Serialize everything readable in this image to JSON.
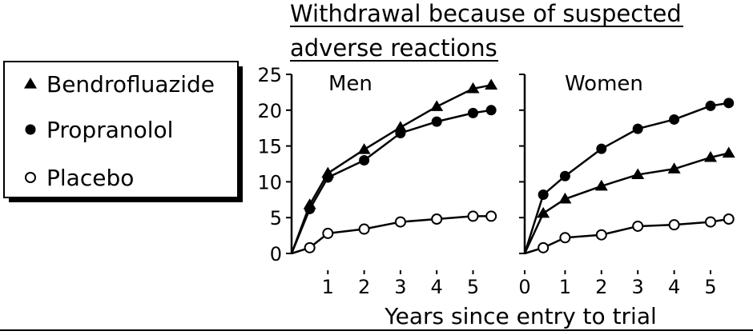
{
  "chart_data": {
    "type": "line",
    "title": [
      "Withdrawal because of suspected",
      "adverse reactions"
    ],
    "xlabel": "Years since entry to trial",
    "ylabel": "",
    "ylim": [
      0,
      25
    ],
    "yticks": [
      0,
      5,
      10,
      15,
      20,
      25
    ],
    "legend": {
      "placement": "left",
      "entries": [
        {
          "marker": "triangle-filled",
          "label": "Bendrofluazide"
        },
        {
          "marker": "circle-filled",
          "label": "Propranolol"
        },
        {
          "marker": "circle-open",
          "label": "Placebo"
        }
      ]
    },
    "panels": [
      {
        "name": "Men",
        "xticks": [
          "1",
          "2",
          "3",
          "4",
          "5"
        ],
        "series": [
          {
            "name": "Bendrofluazide",
            "marker": "triangle-filled",
            "x": [
              0,
              0.5,
              1,
              2,
              3,
              4,
              5,
              5.5
            ],
            "y": [
              0,
              6.8,
              11.2,
              14.5,
              17.6,
              20.5,
              23.0,
              23.5
            ]
          },
          {
            "name": "Propranolol",
            "marker": "circle-filled",
            "x": [
              0,
              0.5,
              1,
              2,
              3,
              4,
              5,
              5.5
            ],
            "y": [
              0,
              6.2,
              10.6,
              13.0,
              16.8,
              18.4,
              19.6,
              20.0
            ]
          },
          {
            "name": "Placebo",
            "marker": "circle-open",
            "x": [
              0,
              0.5,
              1,
              2,
              3,
              4,
              5,
              5.5
            ],
            "y": [
              0,
              0.8,
              2.8,
              3.4,
              4.4,
              4.8,
              5.2,
              5.2
            ]
          }
        ]
      },
      {
        "name": "Women",
        "xticks": [
          "0",
          "1",
          "2",
          "3",
          "4",
          "5"
        ],
        "series": [
          {
            "name": "Bendrofluazide",
            "marker": "triangle-filled",
            "x": [
              0,
              0.4,
              1,
              2,
              3,
              4,
              5,
              5.5
            ],
            "y": [
              0,
              5.6,
              7.6,
              9.4,
              11.0,
              11.8,
              13.4,
              14.0
            ]
          },
          {
            "name": "Propranolol",
            "marker": "circle-filled",
            "x": [
              0,
              0.4,
              1,
              2,
              3,
              4,
              5,
              5.5
            ],
            "y": [
              0,
              8.2,
              10.8,
              14.6,
              17.4,
              18.7,
              20.6,
              21.0
            ]
          },
          {
            "name": "Placebo",
            "marker": "circle-open",
            "x": [
              0,
              0.4,
              1,
              2,
              3,
              4,
              5,
              5.5
            ],
            "y": [
              0,
              0.8,
              2.2,
              2.6,
              3.8,
              4.0,
              4.4,
              4.8
            ]
          }
        ]
      }
    ]
  }
}
